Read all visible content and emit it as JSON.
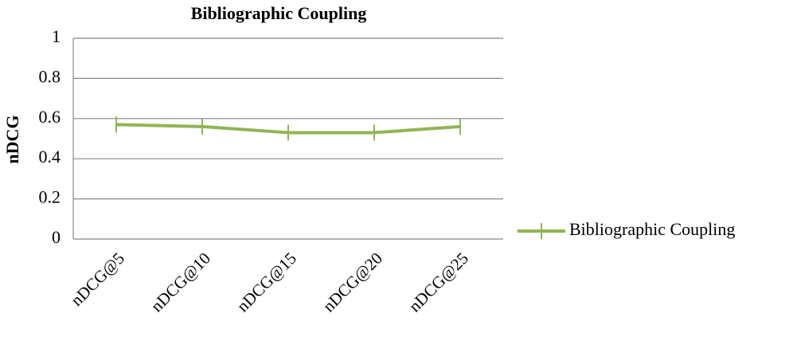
{
  "chart_data": {
    "type": "line",
    "title": "Bibliographic Coupling",
    "y_label": "nDCG",
    "categories": [
      "nDCG@5",
      "nDCG@10",
      "nDCG@15",
      "nDCG@20",
      "nDCG@25"
    ],
    "series": [
      {
        "name": "Bibliographic Coupling",
        "color": "#8fb552",
        "values": [
          0.57,
          0.56,
          0.53,
          0.53,
          0.56
        ]
      }
    ],
    "ylim": [
      0,
      1
    ],
    "yticks": [
      0,
      0.2,
      0.4,
      0.6,
      0.8,
      1
    ],
    "grid": true,
    "legend": "right"
  }
}
